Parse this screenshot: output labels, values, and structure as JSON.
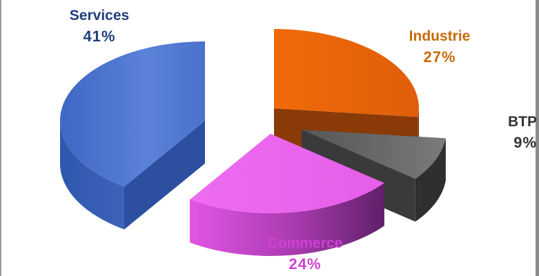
{
  "chart_data": {
    "type": "pie",
    "title": "",
    "legend": "none",
    "categories": [
      "Services",
      "Industrie",
      "BTP",
      "Commerce"
    ],
    "values": [
      41,
      27,
      9,
      24
    ],
    "labels": {
      "services": {
        "name": "Services",
        "pct": "41%"
      },
      "industrie": {
        "name": "Industrie",
        "pct": "27%"
      },
      "btp": {
        "name": "BTP",
        "pct": "9%"
      },
      "commerce": {
        "name": "Commerce",
        "pct": "24%"
      }
    },
    "colors": {
      "services": "#4a72cc",
      "industrie": "#e8650a",
      "btp": "#6f6f6f",
      "commerce": "#e55ee8"
    },
    "label_colors": {
      "services": "#1f3f7a",
      "industrie": "#c86a0a",
      "btp": "#333333",
      "commerce": "#d13fd6"
    }
  }
}
